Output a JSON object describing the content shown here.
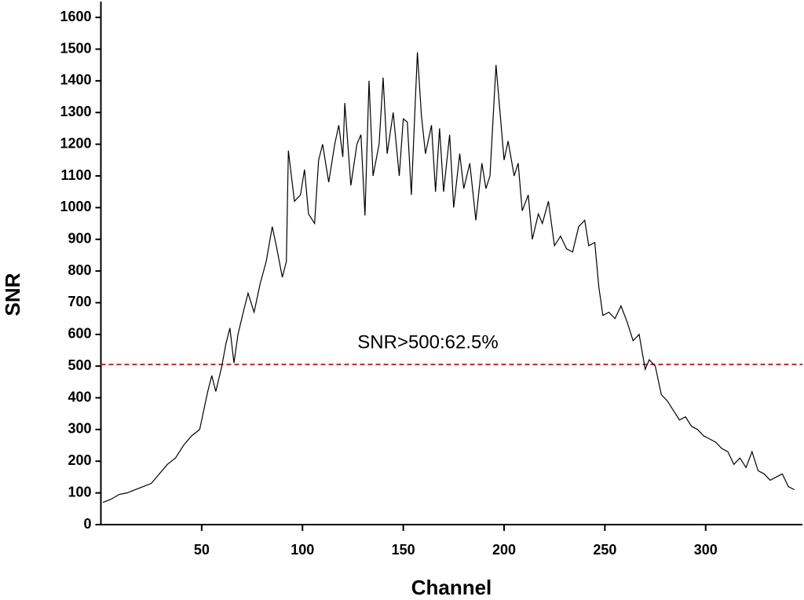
{
  "chart_data": {
    "type": "line",
    "x_label": "Channel",
    "y_label": "SNR",
    "annotation": "SNR>500:62.5%",
    "threshold": 505,
    "threshold_color": "#e8141b",
    "xlim": [
      0,
      348
    ],
    "xticks": [
      50,
      100,
      150,
      200,
      250,
      300
    ],
    "ylim": [
      0,
      1650
    ],
    "yticks": [
      0,
      100,
      200,
      300,
      400,
      500,
      600,
      700,
      800,
      900,
      1000,
      1100,
      1200,
      1300,
      1400,
      1500,
      1600
    ],
    "series": [
      {
        "name": "SNR",
        "color": "#000000",
        "x": [
          1,
          5,
          9,
          13,
          17,
          21,
          25,
          29,
          33,
          37,
          41,
          45,
          49,
          53,
          55,
          57,
          60,
          62,
          64,
          66,
          68,
          71,
          73,
          76,
          79,
          82,
          85,
          87,
          90,
          92,
          93,
          96,
          99,
          101,
          103,
          106,
          108,
          110,
          113,
          116,
          118,
          120,
          121,
          124,
          127,
          129,
          131,
          133,
          135,
          138,
          140,
          142,
          145,
          148,
          150,
          152,
          154,
          157,
          159,
          161,
          164,
          166,
          168,
          170,
          173,
          175,
          178,
          180,
          183,
          186,
          189,
          191,
          193,
          196,
          198,
          200,
          202,
          205,
          207,
          209,
          212,
          214,
          217,
          219,
          222,
          225,
          228,
          231,
          234,
          237,
          240,
          242,
          245,
          247,
          249,
          252,
          255,
          258,
          261,
          264,
          267,
          270,
          272,
          275,
          278,
          281,
          284,
          287,
          290,
          293,
          296,
          299,
          302,
          305,
          308,
          311,
          314,
          317,
          320,
          323,
          326,
          329,
          332,
          335,
          338,
          341,
          344
        ],
        "values": [
          70,
          80,
          95,
          100,
          110,
          120,
          130,
          160,
          190,
          210,
          250,
          280,
          300,
          420,
          470,
          420,
          500,
          570,
          620,
          510,
          600,
          680,
          730,
          670,
          760,
          830,
          940,
          880,
          780,
          830,
          1180,
          1020,
          1040,
          1120,
          980,
          950,
          1150,
          1200,
          1080,
          1200,
          1260,
          1160,
          1330,
          1070,
          1200,
          1230,
          975,
          1400,
          1100,
          1200,
          1410,
          1170,
          1300,
          1100,
          1280,
          1270,
          1040,
          1490,
          1290,
          1170,
          1260,
          1050,
          1250,
          1050,
          1230,
          1000,
          1170,
          1060,
          1140,
          960,
          1140,
          1060,
          1100,
          1450,
          1300,
          1150,
          1210,
          1100,
          1140,
          990,
          1040,
          900,
          980,
          950,
          1020,
          880,
          910,
          870,
          860,
          940,
          960,
          880,
          890,
          750,
          660,
          670,
          650,
          690,
          640,
          580,
          600,
          490,
          520,
          500,
          410,
          390,
          360,
          330,
          340,
          310,
          300,
          280,
          270,
          260,
          240,
          230,
          190,
          210,
          180,
          230,
          170,
          160,
          140,
          150,
          160,
          120,
          110
        ]
      }
    ]
  }
}
